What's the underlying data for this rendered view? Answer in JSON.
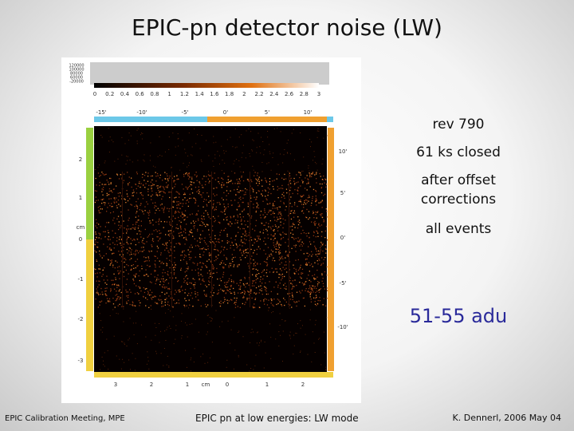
{
  "title": "EPIC-pn detector noise  (LW)",
  "annotations": [
    "rev 790",
    "61 ks closed",
    "after offset corrections",
    "all events"
  ],
  "highlight": "51-55 adu",
  "figure": {
    "colorbar_value_labels": [
      "120000",
      "100000",
      "80000",
      "60000",
      "-20000"
    ],
    "colorbar_labels": [
      "0",
      "0.2",
      "0.4",
      "0.6",
      "0.8",
      "1",
      "1.2",
      "1.4",
      "1.6",
      "1.8",
      "2",
      "2.2",
      "2.4",
      "2.6",
      "2.8",
      "3"
    ],
    "top_axis_labels": [
      "-15'",
      "-10'",
      "-5'",
      "0'",
      "5'",
      "10'"
    ],
    "right_axis_labels": [
      "10'",
      "5'",
      "0'",
      "-5'",
      "-10'"
    ],
    "left_axis_labels": [
      "2",
      "1",
      "cm",
      "0",
      "-1",
      "-2",
      "-3"
    ],
    "bottom_axis_labels": [
      "3",
      "2",
      "1",
      "cm",
      "0",
      "1",
      "2"
    ]
  },
  "footer": {
    "left": "EPIC Calibration Meeting, MPE",
    "center": "EPIC pn at low energies: LW mode",
    "right": "K. Dennerl, 2006 May 04"
  }
}
